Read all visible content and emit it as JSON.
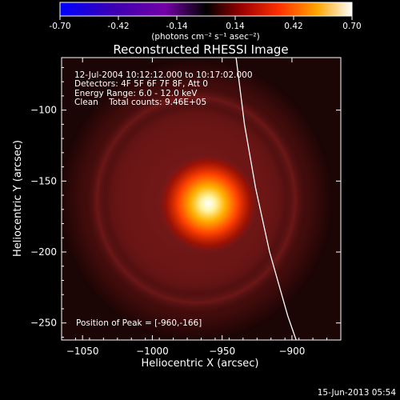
{
  "chart_data": {
    "type": "heatmap",
    "title": "Reconstructed RHESSI Image",
    "xlabel": "Heliocentric X (arcsec)",
    "ylabel": "Heliocentric Y (arcsec)",
    "xlim": [
      -1065,
      -865
    ],
    "ylim": [
      -262,
      -63
    ],
    "x_ticks": [
      -1050,
      -1000,
      -950,
      -900
    ],
    "y_ticks": [
      -250,
      -200,
      -150,
      -100
    ],
    "colorbar": {
      "ticks": [
        -0.7,
        -0.42,
        -0.14,
        0.14,
        0.42,
        0.7
      ],
      "tick_labels": [
        "-0.70",
        "-0.42",
        "-0.14",
        "0.14",
        "0.42",
        "0.70"
      ],
      "range": [
        -0.7,
        0.7
      ],
      "units": "(photons cm⁻² s⁻¹ asec⁻²)"
    },
    "peak": {
      "x": -960,
      "y": -166
    },
    "annotations": {
      "time": "12-Jul-2004 10:12:12.000 to 10:17:02.000",
      "detectors": "Detectors: 4F 5F 6F 7F 8F, Att 0",
      "energy": "Energy Range: 6.0 - 12.0 keV",
      "clean": "Clean    Total counts: 9.46E+05",
      "peak_label": "Position of Peak = [-960,-166]"
    },
    "limb": [
      {
        "x": -940,
        "y": -63
      },
      {
        "x": -934,
        "y": -110
      },
      {
        "x": -926,
        "y": -155
      },
      {
        "x": -916,
        "y": -200
      },
      {
        "x": -903,
        "y": -245
      },
      {
        "x": -897,
        "y": -262
      }
    ],
    "limb_color": "#ffffff",
    "colormap_stops": [
      "#0000ff",
      "#3a00b0",
      "#7a00a0",
      "#000000",
      "#8b0000",
      "#ff4000",
      "#ffb000",
      "#ffffff"
    ]
  },
  "footer": {
    "date": "15-Jun-2013 05:54"
  }
}
